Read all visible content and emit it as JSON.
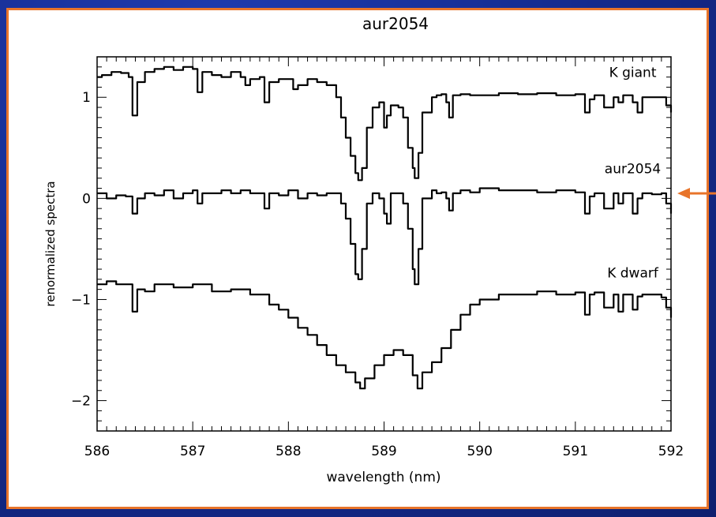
{
  "colors": {
    "background": "#142a8c",
    "frame_border": "#e8742a",
    "arrow": "#e8742a",
    "ink": "#000000"
  },
  "chart_data": {
    "type": "line",
    "title": "aur2054",
    "xlabel": "wavelength (nm)",
    "ylabel": "renormalized spectra",
    "xlim": [
      586,
      592
    ],
    "ylim": [
      -2.3,
      1.4
    ],
    "xticks": [
      586,
      587,
      588,
      589,
      590,
      591,
      592
    ],
    "xtick_labels": [
      "586",
      "587",
      "588",
      "589",
      "590",
      "591",
      "592"
    ],
    "yticks": [
      1,
      0,
      -1,
      -2
    ],
    "ytick_labels": [
      "1",
      "0",
      "−1",
      "−2"
    ],
    "grid": false,
    "annotations": [
      {
        "text": "K giant",
        "x": 591.6,
        "y": 1.2
      },
      {
        "text": "aur2054",
        "x": 591.6,
        "y": 0.25
      },
      {
        "text": "K dwarf",
        "x": 591.6,
        "y": -0.78
      }
    ],
    "series": [
      {
        "name": "K giant",
        "x": [
          586.0,
          586.05,
          586.15,
          586.25,
          586.33,
          586.37,
          586.42,
          586.5,
          586.6,
          586.7,
          586.8,
          586.9,
          587.0,
          587.05,
          587.1,
          587.2,
          587.3,
          587.4,
          587.5,
          587.55,
          587.6,
          587.7,
          587.75,
          587.8,
          587.9,
          588.0,
          588.05,
          588.1,
          588.2,
          588.3,
          588.4,
          588.5,
          588.55,
          588.6,
          588.65,
          588.7,
          588.73,
          588.77,
          588.82,
          588.88,
          588.95,
          589.0,
          589.03,
          589.07,
          589.15,
          589.2,
          589.25,
          589.3,
          589.32,
          589.36,
          589.4,
          589.5,
          589.55,
          589.6,
          589.65,
          589.68,
          589.72,
          589.8,
          589.9,
          590.0,
          590.2,
          590.4,
          590.6,
          590.8,
          591.0,
          591.1,
          591.15,
          591.2,
          591.3,
          591.4,
          591.45,
          591.5,
          591.6,
          591.65,
          591.7,
          591.8,
          591.9,
          591.95,
          592.0
        ],
        "y": [
          1.2,
          1.22,
          1.25,
          1.24,
          1.2,
          0.82,
          1.15,
          1.25,
          1.28,
          1.3,
          1.27,
          1.3,
          1.28,
          1.05,
          1.25,
          1.22,
          1.2,
          1.25,
          1.2,
          1.12,
          1.18,
          1.2,
          0.95,
          1.15,
          1.18,
          1.18,
          1.08,
          1.12,
          1.18,
          1.15,
          1.12,
          1.0,
          0.8,
          0.6,
          0.42,
          0.25,
          0.18,
          0.3,
          0.7,
          0.9,
          0.95,
          0.7,
          0.82,
          0.92,
          0.9,
          0.8,
          0.5,
          0.3,
          0.2,
          0.45,
          0.85,
          1.0,
          1.02,
          1.03,
          0.95,
          0.8,
          1.02,
          1.03,
          1.02,
          1.02,
          1.04,
          1.03,
          1.04,
          1.02,
          1.03,
          0.85,
          0.98,
          1.02,
          0.9,
          1.0,
          0.95,
          1.02,
          0.95,
          0.85,
          1.0,
          1.0,
          1.0,
          0.92,
          0.85
        ]
      },
      {
        "name": "aur2054",
        "x": [
          586.0,
          586.1,
          586.2,
          586.3,
          586.37,
          586.42,
          586.5,
          586.6,
          586.7,
          586.8,
          586.9,
          587.0,
          587.05,
          587.1,
          587.2,
          587.3,
          587.4,
          587.5,
          587.6,
          587.7,
          587.75,
          587.8,
          587.9,
          588.0,
          588.1,
          588.2,
          588.3,
          588.4,
          588.5,
          588.55,
          588.6,
          588.65,
          588.7,
          588.73,
          588.77,
          588.82,
          588.88,
          588.95,
          589.0,
          589.03,
          589.07,
          589.15,
          589.2,
          589.25,
          589.3,
          589.32,
          589.36,
          589.4,
          589.5,
          589.55,
          589.6,
          589.65,
          589.68,
          589.72,
          589.8,
          589.9,
          590.0,
          590.2,
          590.4,
          590.6,
          590.8,
          591.0,
          591.1,
          591.15,
          591.2,
          591.3,
          591.4,
          591.45,
          591.5,
          591.6,
          591.65,
          591.7,
          591.8,
          591.9,
          591.95,
          592.0
        ],
        "y": [
          0.05,
          0.0,
          0.03,
          0.02,
          -0.15,
          0.0,
          0.05,
          0.03,
          0.08,
          0.0,
          0.05,
          0.08,
          -0.05,
          0.05,
          0.05,
          0.08,
          0.05,
          0.08,
          0.05,
          0.05,
          -0.1,
          0.05,
          0.03,
          0.08,
          0.0,
          0.05,
          0.03,
          0.05,
          0.05,
          -0.05,
          -0.2,
          -0.45,
          -0.75,
          -0.8,
          -0.5,
          -0.05,
          0.05,
          0.0,
          -0.15,
          -0.25,
          0.05,
          0.05,
          -0.05,
          -0.3,
          -0.7,
          -0.85,
          -0.5,
          0.0,
          0.08,
          0.05,
          0.06,
          0.0,
          -0.12,
          0.05,
          0.08,
          0.06,
          0.1,
          0.08,
          0.08,
          0.06,
          0.08,
          0.06,
          -0.15,
          0.02,
          0.05,
          -0.1,
          0.05,
          -0.05,
          0.05,
          -0.15,
          0.0,
          0.05,
          0.04,
          0.05,
          -0.05,
          -0.15
        ]
      },
      {
        "name": "K dwarf",
        "x": [
          586.0,
          586.1,
          586.2,
          586.3,
          586.37,
          586.42,
          586.5,
          586.6,
          586.8,
          587.0,
          587.2,
          587.4,
          587.6,
          587.8,
          587.9,
          588.0,
          588.1,
          588.2,
          588.3,
          588.4,
          588.5,
          588.6,
          588.7,
          588.75,
          588.8,
          588.9,
          589.0,
          589.1,
          589.2,
          589.3,
          589.35,
          589.4,
          589.5,
          589.6,
          589.7,
          589.8,
          589.9,
          590.0,
          590.2,
          590.4,
          590.6,
          590.8,
          591.0,
          591.1,
          591.15,
          591.2,
          591.3,
          591.4,
          591.45,
          591.5,
          591.6,
          591.65,
          591.7,
          591.8,
          591.9,
          591.95,
          592.0
        ],
        "y": [
          -0.85,
          -0.82,
          -0.85,
          -0.85,
          -1.12,
          -0.9,
          -0.92,
          -0.85,
          -0.88,
          -0.85,
          -0.92,
          -0.9,
          -0.95,
          -1.05,
          -1.1,
          -1.18,
          -1.28,
          -1.35,
          -1.45,
          -1.55,
          -1.65,
          -1.72,
          -1.82,
          -1.88,
          -1.78,
          -1.65,
          -1.55,
          -1.5,
          -1.55,
          -1.75,
          -1.88,
          -1.72,
          -1.62,
          -1.48,
          -1.3,
          -1.15,
          -1.05,
          -1.0,
          -0.95,
          -0.95,
          -0.92,
          -0.95,
          -0.93,
          -1.15,
          -0.95,
          -0.93,
          -1.08,
          -0.95,
          -1.12,
          -0.95,
          -1.1,
          -0.97,
          -0.95,
          -0.95,
          -0.98,
          -1.08,
          -1.18
        ]
      }
    ]
  }
}
